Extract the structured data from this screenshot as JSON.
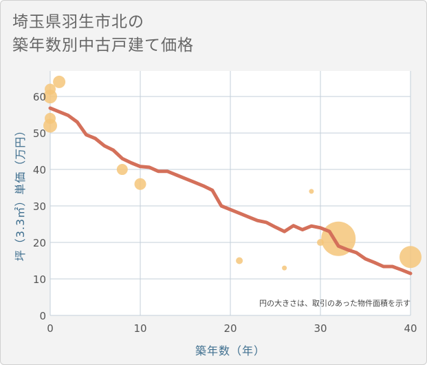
{
  "title_line1": "埼玉県羽生市北の",
  "title_line2": "築年数別中古戸建て価格",
  "chart_data": {
    "type": "scatter",
    "xlabel": "築年数（年）",
    "ylabel": "坪（3.3㎡）単価（万円）",
    "xlim": [
      0,
      40
    ],
    "ylim": [
      0,
      67
    ],
    "xticks": [
      0,
      10,
      20,
      30,
      40
    ],
    "yticks": [
      0,
      10,
      20,
      30,
      40,
      50,
      60
    ],
    "grid": true,
    "note": "円の大きさは、取引のあった物件面積を示す",
    "colors": {
      "bubble": "#f5c57a",
      "line": "#d4705a",
      "grid": "#c3cfda"
    },
    "points": [
      {
        "x": 0,
        "y": 62,
        "size": 8
      },
      {
        "x": 0,
        "y": 60,
        "size": 10
      },
      {
        "x": 0,
        "y": 54,
        "size": 8
      },
      {
        "x": 0,
        "y": 52,
        "size": 10
      },
      {
        "x": 1,
        "y": 64,
        "size": 9
      },
      {
        "x": 8,
        "y": 40,
        "size": 8
      },
      {
        "x": 10,
        "y": 36,
        "size": 8.5
      },
      {
        "x": 21,
        "y": 15,
        "size": 5
      },
      {
        "x": 26,
        "y": 13,
        "size": 3.5
      },
      {
        "x": 29,
        "y": 34,
        "size": 3.5
      },
      {
        "x": 30,
        "y": 20,
        "size": 5
      },
      {
        "x": 32,
        "y": 21,
        "size": 25
      },
      {
        "x": 40,
        "y": 16,
        "size": 16
      }
    ],
    "trend": {
      "x": [
        0,
        1,
        2,
        3,
        4,
        5,
        6,
        7,
        8,
        9,
        10,
        11,
        12,
        13,
        14,
        15,
        16,
        17,
        18,
        19,
        20,
        21,
        22,
        23,
        24,
        25,
        26,
        27,
        28,
        29,
        30,
        31,
        32,
        33,
        34,
        35,
        36,
        37,
        38,
        39,
        40
      ],
      "y": [
        56.8,
        55.8,
        54.8,
        53.0,
        49.5,
        48.5,
        46.5,
        45.3,
        43.0,
        41.8,
        40.8,
        40.6,
        39.5,
        39.5,
        38.5,
        37.5,
        36.5,
        35.5,
        34.3,
        30.0,
        29.0,
        28.0,
        27.0,
        26.0,
        25.5,
        24.2,
        23.0,
        24.6,
        23.5,
        24.5,
        24.0,
        23.0,
        19.0,
        18.0,
        17.2,
        15.5,
        14.5,
        13.4,
        13.4,
        12.5,
        11.5
      ]
    }
  }
}
